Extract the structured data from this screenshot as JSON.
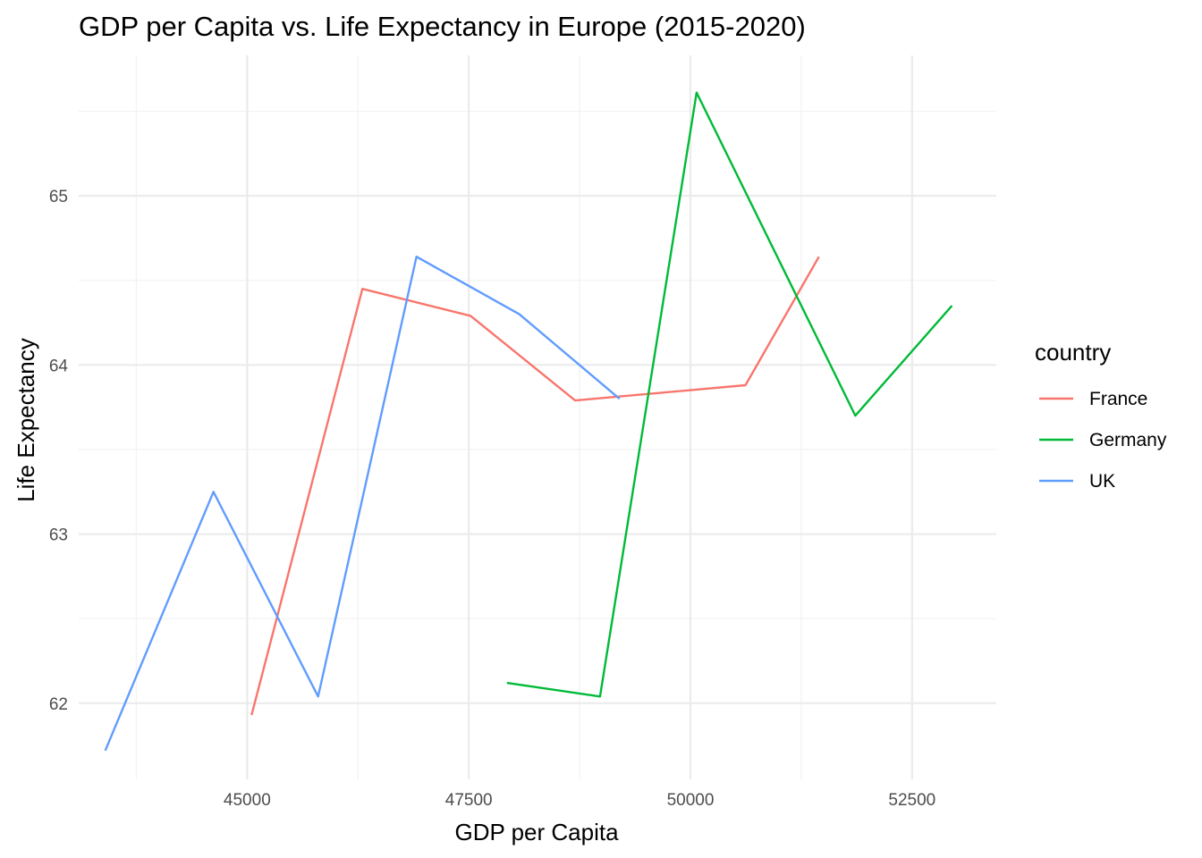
{
  "chart_data": {
    "type": "line",
    "title": "GDP per Capita vs. Life Expectancy in Europe (2015-2020)",
    "xlabel": "GDP per Capita",
    "ylabel": "Life Expectancy",
    "xlim": [
      43100,
      53450
    ],
    "ylim": [
      61.55,
      65.83
    ],
    "x_ticks": [
      45000,
      47500,
      50000,
      52500
    ],
    "y_ticks": [
      62,
      63,
      64,
      65
    ],
    "grid": true,
    "legend": {
      "title": "country",
      "position": "right"
    },
    "series": [
      {
        "name": "France",
        "color": "#F8766D",
        "points": [
          {
            "x": 45050,
            "y": 61.93
          },
          {
            "x": 46300,
            "y": 64.45
          },
          {
            "x": 47520,
            "y": 64.29
          },
          {
            "x": 48700,
            "y": 63.79
          },
          {
            "x": 50620,
            "y": 63.88
          },
          {
            "x": 51450,
            "y": 64.64
          }
        ]
      },
      {
        "name": "Germany",
        "color": "#00BA38",
        "points": [
          {
            "x": 47930,
            "y": 62.12
          },
          {
            "x": 48980,
            "y": 62.04
          },
          {
            "x": 50070,
            "y": 65.61
          },
          {
            "x": 51860,
            "y": 63.7
          },
          {
            "x": 52950,
            "y": 64.35
          }
        ]
      },
      {
        "name": "UK",
        "color": "#619CFF",
        "points": [
          {
            "x": 43400,
            "y": 61.72
          },
          {
            "x": 44620,
            "y": 63.25
          },
          {
            "x": 45800,
            "y": 62.04
          },
          {
            "x": 46910,
            "y": 64.64
          },
          {
            "x": 48070,
            "y": 64.3
          },
          {
            "x": 49200,
            "y": 63.8
          }
        ]
      }
    ]
  }
}
